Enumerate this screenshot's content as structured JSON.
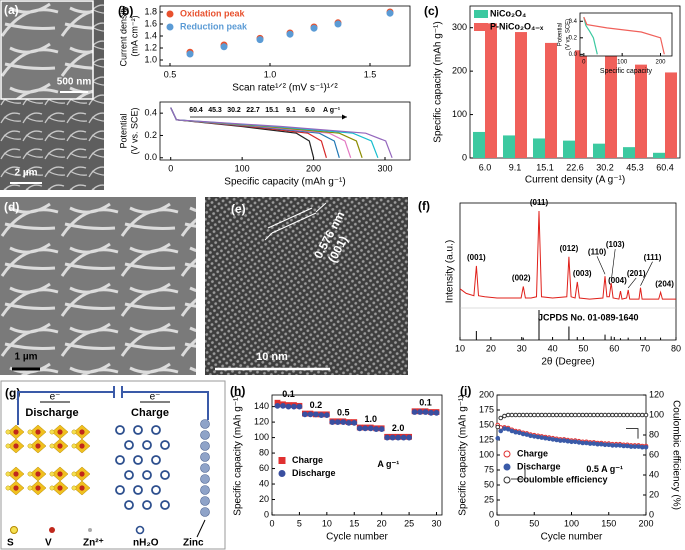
{
  "images": [
    {
      "label": "(a)",
      "inset_scale_bar": "500 nm",
      "scale_bar": "2 µm"
    },
    {
      "label": "(d)",
      "scale_bar": "1 µm"
    },
    {
      "label": "(e)",
      "lattice_spacing": "0.576 nm",
      "plane": "(001)",
      "scale_bar": "10 nm"
    }
  ],
  "diagram": {
    "label": "(g)",
    "discharge": "Discharge",
    "charge": "Charge",
    "electron": "e⁻",
    "legend": [
      "S",
      "V",
      "Zn²⁺",
      "nH₂O",
      "Zinc"
    ]
  },
  "chart_data": [
    {
      "type": "scatter",
      "label": "(b)",
      "x_label": "Scan rate¹ᐟ² (mV s⁻¹)¹ᐟ²",
      "y_label": [
        "Current density",
        "(mA cm⁻²)"
      ],
      "x": [
        0.6,
        0.77,
        0.95,
        1.1,
        1.22,
        1.34,
        1.6
      ],
      "series": [
        {
          "name": "Oxidation peak",
          "color": "#e8512e",
          "marker": "circle",
          "filled": true,
          "values": [
            1.13,
            1.25,
            1.36,
            1.45,
            1.55,
            1.62,
            1.8
          ]
        },
        {
          "name": "Reduction peak",
          "color": "#5b9bd5",
          "marker": "circle",
          "filled": true,
          "values": [
            1.1,
            1.22,
            1.34,
            1.43,
            1.53,
            1.6,
            1.78
          ]
        }
      ],
      "xlim": [
        0.45,
        1.7
      ],
      "xticks": [
        0.5,
        {
          "value": 1,
          "label": "1.0"
        },
        1.5
      ],
      "ylim": [
        0.9,
        1.9
      ],
      "yticks": [
        {
          "value": 1,
          "label": "1.0"
        },
        1.2,
        1.4,
        1.6,
        1.8
      ],
      "legend": "upper left"
    },
    {
      "type": "line",
      "x_label": "Specific capacity (mAh g⁻¹)",
      "y_label": [
        "Potential",
        "(V vs. SCE)"
      ],
      "unit_label": "A g⁻¹",
      "series": [
        {
          "name": "60.4",
          "color": "#222222",
          "x": [
            0,
            8,
            100,
            176,
            194,
            200
          ],
          "values": [
            0.45,
            0.34,
            0.28,
            0.22,
            0.15,
            0
          ]
        },
        {
          "name": "45.3",
          "color": "#d62728",
          "x": [
            0,
            8,
            109,
            192,
            211,
            218
          ],
          "values": [
            0.45,
            0.34,
            0.28,
            0.22,
            0.15,
            0
          ]
        },
        {
          "name": "30.2",
          "color": "#1f77b4",
          "x": [
            0,
            8,
            118,
            208,
            229,
            236
          ],
          "values": [
            0.45,
            0.34,
            0.28,
            0.22,
            0.15,
            0
          ]
        },
        {
          "name": "22.7",
          "color": "#e377c2",
          "x": [
            0,
            8,
            126,
            222,
            244,
            252
          ],
          "values": [
            0.45,
            0.34,
            0.28,
            0.22,
            0.15,
            0
          ]
        },
        {
          "name": "15.1",
          "color": "#8c8c00",
          "x": [
            0,
            8,
            134,
            236,
            260,
            268
          ],
          "values": [
            0.45,
            0.34,
            0.28,
            0.22,
            0.15,
            0
          ]
        },
        {
          "name": "9.1",
          "color": "#17becf",
          "x": [
            0,
            8,
            145,
            255,
            281,
            290
          ],
          "values": [
            0.45,
            0.34,
            0.28,
            0.22,
            0.15,
            0
          ]
        },
        {
          "name": "6.0",
          "color": "#9467bd",
          "x": [
            0,
            8,
            155,
            273,
            301,
            310
          ],
          "values": [
            0.45,
            0.34,
            0.28,
            0.22,
            0.15,
            0
          ]
        }
      ],
      "xlim": [
        -15,
        335
      ],
      "xticks": [
        0,
        100,
        200,
        300
      ],
      "ylim": [
        -0.02,
        0.5
      ],
      "yticks": [
        {
          "value": 0,
          "label": "0.0"
        },
        0.2,
        0.4
      ],
      "legend": "top"
    },
    {
      "type": "bar",
      "label": "(c)",
      "x_label": "Current density (A g⁻¹)",
      "y_label": "Specific capacity (mAh g⁻¹)",
      "categories": [
        "6.0",
        "9.1",
        "15.1",
        "22.6",
        "30.2",
        "45.3",
        "60.4"
      ],
      "series": [
        {
          "name": "NiCo₂O₄",
          "color": "#3cc9a0",
          "values": [
            60,
            52,
            45,
            40,
            33,
            25,
            12
          ]
        },
        {
          "name": "P-NiCo₂O₄₋ₓ",
          "color": "#f0605a",
          "values": [
            310,
            290,
            265,
            248,
            235,
            215,
            197
          ]
        }
      ],
      "ylim": [
        0,
        350
      ],
      "yticks": [
        0,
        100,
        200,
        300
      ],
      "legend": "upper left"
    },
    {
      "type": "line",
      "x_label": "Specific capacity",
      "y_label": [
        "Potential",
        "(V vs. SCE)"
      ],
      "series": [
        {
          "color": "#3cc9a0",
          "x": [
            0,
            5,
            15,
            25,
            35
          ],
          "values": [
            0.45,
            0.35,
            0.28,
            0.2,
            0
          ]
        },
        {
          "color": "#f0605a",
          "x": [
            0,
            8,
            60,
            150,
            200,
            210
          ],
          "values": [
            0.45,
            0.36,
            0.32,
            0.27,
            0.2,
            0
          ]
        }
      ],
      "xlim": [
        -10,
        230
      ],
      "xticks": [
        0,
        100,
        200
      ],
      "ylim": [
        -0.02,
        0.5
      ],
      "yticks": [
        {
          "value": 0,
          "label": "0.0"
        },
        0.2,
        0.4
      ]
    },
    {
      "type": "line",
      "label": "(f)",
      "x_label": "2θ (Degree)",
      "y_label": "Intensity (a.u.)",
      "x": [
        10,
        12,
        14.5,
        15.3,
        16,
        18,
        22,
        26,
        29.8,
        30.5,
        31.2,
        33,
        34.8,
        35.6,
        36.4,
        40,
        44.6,
        45.3,
        46,
        47.3,
        48,
        48.7,
        52,
        56.3,
        57,
        57.6,
        58.4,
        59,
        59.6,
        61.5,
        62,
        62.5,
        64,
        64.5,
        65,
        68,
        68.5,
        69,
        74.4,
        75,
        75.6,
        78,
        80
      ],
      "series": [
        {
          "color": "#e0201a",
          "values": [
            30,
            26,
            24,
            50,
            24,
            23,
            22,
            22,
            22,
            32,
            22,
            22,
            23,
            98,
            23,
            22,
            23,
            58,
            23,
            22,
            36,
            22,
            21,
            22,
            41,
            23,
            23,
            35,
            22,
            21,
            28,
            21,
            22,
            29,
            21,
            21,
            31,
            21,
            21,
            27,
            21,
            21,
            21
          ]
        }
      ],
      "peak_labels": [
        "(001)",
        "(002)",
        "(011)",
        "(012)",
        "(003)",
        "(110)",
        "(103)",
        "(004)",
        "(201)",
        "(111)",
        "(204)"
      ],
      "reference": {
        "label": "JCPDS No. 01-089-1640",
        "x": [
          15.3,
          30.5,
          35.6,
          45.3,
          48,
          57,
          59,
          62,
          64.5,
          68.5,
          75
        ],
        "values": [
          30,
          8,
          100,
          45,
          10,
          18,
          12,
          6,
          8,
          10,
          8
        ],
        "ylim": [
          0,
          100
        ],
        "color": "#000000"
      },
      "xlim": [
        10,
        80
      ],
      "xticks": [
        10,
        20,
        30,
        40,
        50,
        60,
        70,
        80
      ],
      "ylim": [
        15,
        105
      ]
    },
    {
      "type": "scatter",
      "label": "(h)",
      "x_label": "Cycle number",
      "y_label": "Specific capacity (mAh g⁻¹)",
      "x": [
        1,
        2,
        3,
        4,
        5,
        6,
        7,
        8,
        9,
        10,
        11,
        12,
        13,
        14,
        15,
        16,
        17,
        18,
        19,
        20,
        21,
        22,
        23,
        24,
        25,
        26,
        27,
        28,
        29,
        30
      ],
      "series": [
        {
          "name": "Charge",
          "color": "#e03030",
          "marker": "square",
          "filled": true,
          "values": [
            145,
            143,
            142,
            142,
            141,
            131,
            131,
            130,
            130,
            130,
            121,
            121,
            121,
            120,
            120,
            113,
            113,
            113,
            112,
            112,
            101,
            101,
            101,
            101,
            101,
            134,
            134,
            134,
            133,
            133
          ]
        },
        {
          "name": "Discharge",
          "color": "#3a4fa0",
          "marker": "circle",
          "filled": true,
          "values": [
            141,
            141,
            140,
            140,
            140,
            130,
            130,
            130,
            129,
            129,
            120,
            120,
            120,
            119,
            119,
            112,
            112,
            112,
            111,
            111,
            100,
            100,
            100,
            100,
            100,
            133,
            133,
            133,
            132,
            132
          ]
        }
      ],
      "rate_labels": [
        "0.1",
        "0.2",
        "0.5",
        "1.0",
        "2.0",
        "0.1"
      ],
      "rate_unit": "A g⁻¹",
      "xlim": [
        0,
        31
      ],
      "xticks": [
        0,
        5,
        10,
        15,
        20,
        25,
        30
      ],
      "ylim": [
        0,
        155
      ],
      "yticks": [
        0,
        20,
        40,
        60,
        80,
        100,
        120,
        140
      ],
      "legend": "center left"
    },
    {
      "type": "scatter",
      "label": "(i)",
      "x_label": "Cycle number",
      "y_label": "Specific capacity (mAh g⁻¹)",
      "y2_label": "Coulombic efficiency (%)",
      "annotation": "0.5 A g⁻¹",
      "x": [
        1,
        5,
        10,
        15,
        20,
        25,
        30,
        35,
        40,
        45,
        50,
        55,
        60,
        65,
        70,
        75,
        80,
        85,
        90,
        95,
        100,
        105,
        110,
        115,
        120,
        125,
        130,
        135,
        140,
        145,
        150,
        155,
        160,
        165,
        170,
        175,
        180,
        185,
        190,
        195,
        200
      ],
      "series": [
        {
          "name": "Charge",
          "color": "#e03030",
          "marker": "circle",
          "filled": false,
          "values": [
            150,
            146,
            146,
            145,
            142,
            140,
            139,
            137,
            136,
            134,
            133,
            132,
            131,
            130,
            129,
            128,
            127,
            126,
            126,
            125,
            124,
            124,
            123,
            122,
            122,
            121,
            121,
            120,
            120,
            119,
            119,
            118,
            118,
            118,
            117,
            117,
            116,
            116,
            116,
            115,
            115
          ]
        },
        {
          "name": "Discharge",
          "color": "#3a5aa8",
          "marker": "circle",
          "filled": true,
          "values": [
            128,
            140,
            144,
            143,
            140,
            138,
            137,
            135,
            134,
            132,
            131,
            130,
            129,
            128,
            127,
            126,
            125,
            124,
            124,
            123,
            122,
            122,
            121,
            120,
            120,
            119,
            119,
            118,
            118,
            117,
            117,
            116,
            116,
            116,
            115,
            115,
            114,
            114,
            114,
            113,
            113
          ]
        },
        {
          "name": "Coulomble efficiency",
          "color": "#333333",
          "marker": "circle",
          "filled": false,
          "axis": "y2",
          "values": [
            88,
            97,
            99,
            100,
            100,
            100,
            100,
            100,
            100,
            100,
            100,
            100,
            100,
            100,
            100,
            100,
            100,
            100,
            100,
            100,
            100,
            100,
            100,
            100,
            100,
            100,
            100,
            100,
            100,
            100,
            100,
            100,
            100,
            100,
            100,
            100,
            100,
            100,
            100,
            100,
            100
          ]
        }
      ],
      "xlim": [
        0,
        200
      ],
      "xticks": [
        0,
        50,
        100,
        150,
        200
      ],
      "ylim": [
        0,
        200
      ],
      "yticks": [
        0,
        25,
        50,
        75,
        100,
        125,
        150,
        175,
        200
      ],
      "y2lim": [
        0,
        120
      ],
      "y2ticks": [
        0,
        20,
        40,
        60,
        80,
        100,
        120
      ],
      "legend": "center left"
    }
  ]
}
